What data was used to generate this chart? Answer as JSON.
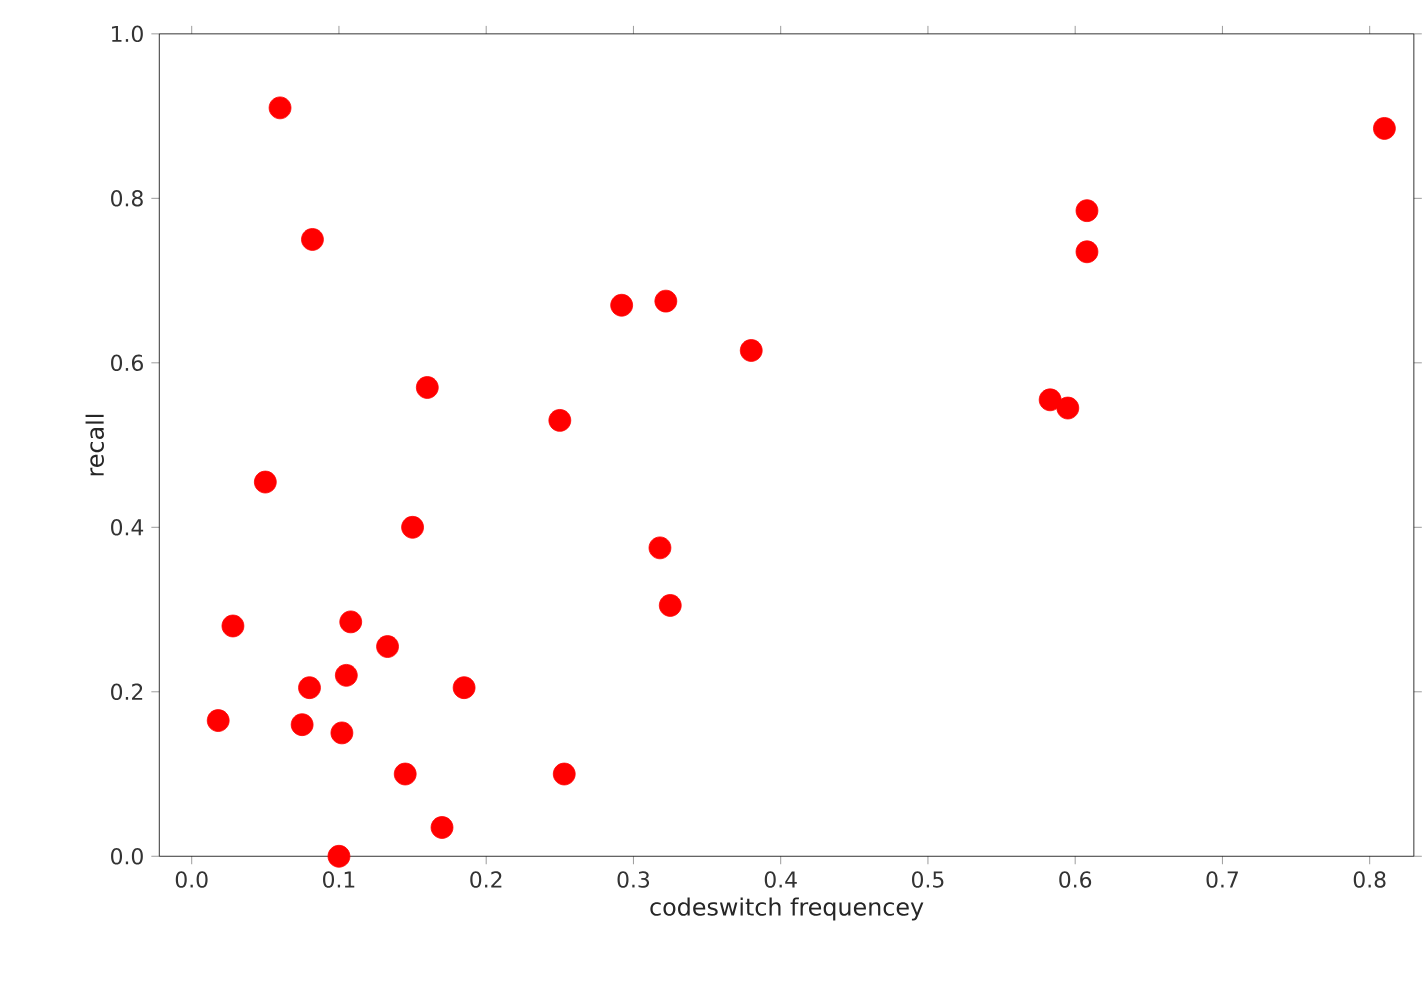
{
  "chart_data": {
    "type": "scatter",
    "xlabel": "codeswitch frequencey",
    "ylabel": "recall",
    "xlim": [
      -0.022,
      0.83
    ],
    "ylim": [
      0,
      1
    ],
    "xticks": [
      {
        "value": 0,
        "label": "0.0"
      },
      0.1,
      0.2,
      0.3,
      0.4,
      0.5,
      0.6,
      0.7,
      0.8
    ],
    "yticks": [
      {
        "value": 0,
        "label": "0.0"
      },
      0.2,
      0.4,
      0.6,
      0.8,
      {
        "value": 1,
        "label": "1.0"
      }
    ],
    "grid": false,
    "marker": "circle",
    "series": [
      {
        "color": "#ff0000",
        "x": [
          0.018,
          0.028,
          0.05,
          0.06,
          0.075,
          0.08,
          0.082,
          0.1,
          0.102,
          0.105,
          0.108,
          0.133,
          0.145,
          0.15,
          0.16,
          0.17,
          0.185,
          0.25,
          0.253,
          0.292,
          0.318,
          0.322,
          0.325,
          0.38,
          0.583,
          0.595,
          0.608,
          0.608,
          0.81
        ],
        "values": [
          0.165,
          0.28,
          0.455,
          0.91,
          0.16,
          0.205,
          0.75,
          0.0,
          0.15,
          0.22,
          0.285,
          0.255,
          0.1,
          0.4,
          0.57,
          0.035,
          0.205,
          0.53,
          0.1,
          0.67,
          0.375,
          0.675,
          0.305,
          0.615,
          0.555,
          0.545,
          0.785,
          0.735,
          0.885
        ]
      }
    ]
  }
}
